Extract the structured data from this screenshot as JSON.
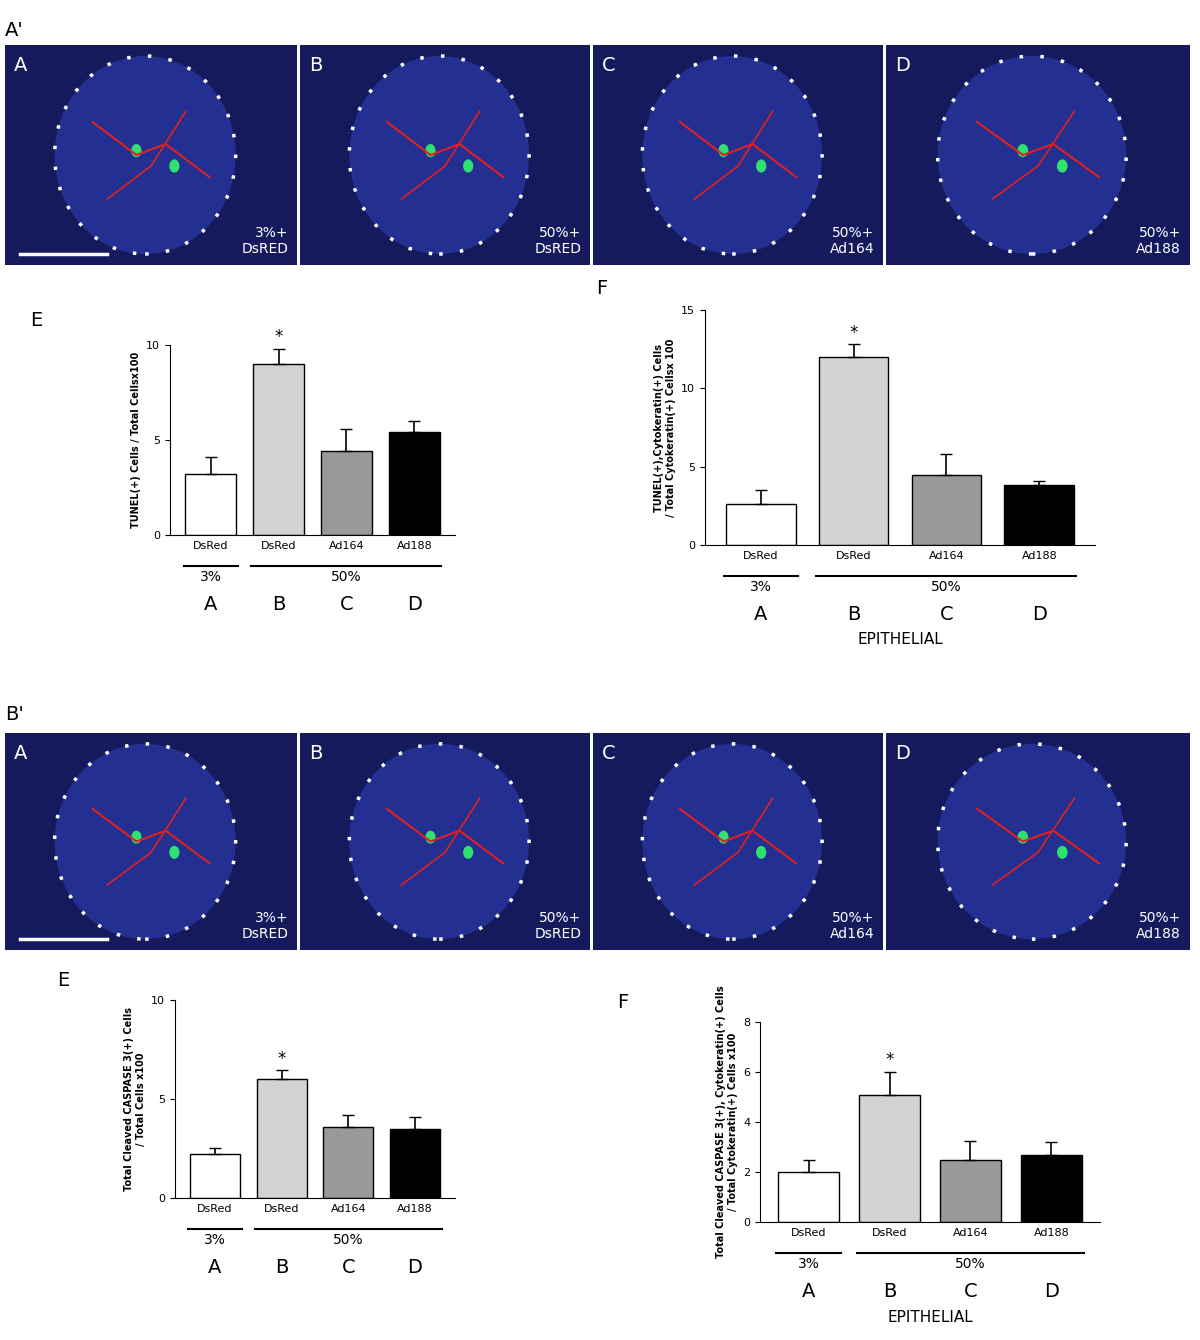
{
  "chart_data": [
    {
      "type": "bar",
      "panel": "E",
      "ylabel": "TUNEL(+) Cells / Total Cellsx100",
      "categories": [
        "DsRed",
        "DsRed",
        "Ad164",
        "Ad188"
      ],
      "values": [
        3.2,
        9.0,
        4.4,
        5.4
      ],
      "errors": [
        0.9,
        0.8,
        1.2,
        0.6
      ],
      "colors": [
        "#ffffff",
        "#d3d3d3",
        "#999999",
        "#000000"
      ],
      "ylim": [
        0,
        10
      ],
      "yticks": [
        0,
        5,
        10
      ],
      "annotations": [
        {
          "index": 1,
          "text": "*"
        }
      ],
      "groups": [
        {
          "label": "3%",
          "categories": [
            0
          ]
        },
        {
          "label": "50%",
          "categories": [
            1,
            2,
            3
          ]
        }
      ],
      "sublabels": [
        "A",
        "B",
        "C",
        "D"
      ]
    },
    {
      "type": "bar",
      "panel": "F",
      "ylabel": "TUNEL(+),Cytokeratin(+) Cells\n/ Total Cytokeratin(+) Cellsx 100",
      "categories": [
        "DsRed",
        "DsRed",
        "Ad164",
        "Ad188"
      ],
      "values": [
        2.6,
        12.0,
        4.5,
        3.8
      ],
      "errors": [
        0.9,
        0.8,
        1.3,
        0.3
      ],
      "colors": [
        "#ffffff",
        "#d3d3d3",
        "#999999",
        "#000000"
      ],
      "ylim": [
        0,
        15
      ],
      "yticks": [
        0,
        5,
        10,
        15
      ],
      "annotations": [
        {
          "index": 1,
          "text": "*"
        }
      ],
      "groups": [
        {
          "label": "3%",
          "categories": [
            0
          ]
        },
        {
          "label": "50%",
          "categories": [
            1,
            2,
            3
          ]
        }
      ],
      "sublabels": [
        "A",
        "B",
        "C",
        "D"
      ],
      "xlabel": "EPITHELIAL"
    },
    {
      "type": "bar",
      "panel": "E",
      "ylabel": "Total Cleaved CASPASE 3(+) Cells\n/ Total Cells x100",
      "categories": [
        "DsRed",
        "DsRed",
        "Ad164",
        "Ad188"
      ],
      "values": [
        2.2,
        6.0,
        3.6,
        3.5
      ],
      "errors": [
        0.35,
        0.45,
        0.6,
        0.6
      ],
      "colors": [
        "#ffffff",
        "#d3d3d3",
        "#999999",
        "#000000"
      ],
      "ylim": [
        0,
        10
      ],
      "yticks": [
        0,
        5,
        10
      ],
      "annotations": [
        {
          "index": 1,
          "text": "*"
        }
      ],
      "groups": [
        {
          "label": "3%",
          "categories": [
            0
          ]
        },
        {
          "label": "50%",
          "categories": [
            1,
            2,
            3
          ]
        }
      ],
      "sublabels": [
        "A",
        "B",
        "C",
        "D"
      ]
    },
    {
      "type": "bar",
      "panel": "F",
      "ylabel": "Total Cleaved CASPASE 3(+), Cytokeratin(+) Cells\n/ Total Cytokeratin(+) Cells x100",
      "categories": [
        "DsRed",
        "DsRed",
        "Ad164",
        "Ad188"
      ],
      "values": [
        2.0,
        5.1,
        2.5,
        2.7
      ],
      "errors": [
        0.5,
        0.9,
        0.75,
        0.5
      ],
      "colors": [
        "#ffffff",
        "#d3d3d3",
        "#999999",
        "#000000"
      ],
      "ylim": [
        0,
        8
      ],
      "yticks": [
        0,
        2,
        4,
        6,
        8
      ],
      "annotations": [
        {
          "index": 1,
          "text": "*"
        }
      ],
      "groups": [
        {
          "label": "3%",
          "categories": [
            0
          ]
        },
        {
          "label": "50%",
          "categories": [
            1,
            2,
            3
          ]
        }
      ],
      "sublabels": [
        "A",
        "B",
        "C",
        "D"
      ],
      "xlabel": "EPITHELIAL"
    }
  ],
  "image_sections": [
    {
      "label": "A'",
      "panels": [
        {
          "letter": "A",
          "caption": "3%+\nDsRED"
        },
        {
          "letter": "B",
          "caption": "50%+\nDsRED"
        },
        {
          "letter": "C",
          "caption": "50%+\nAd164"
        },
        {
          "letter": "D",
          "caption": "50%+\nAd188"
        }
      ]
    },
    {
      "label": "B'",
      "panels": [
        {
          "letter": "A",
          "caption": "3%+\nDsRED"
        },
        {
          "letter": "B",
          "caption": "50%+\nDsRED"
        },
        {
          "letter": "C",
          "caption": "50%+\nAd164"
        },
        {
          "letter": "D",
          "caption": "50%+\nAd188"
        }
      ]
    }
  ]
}
